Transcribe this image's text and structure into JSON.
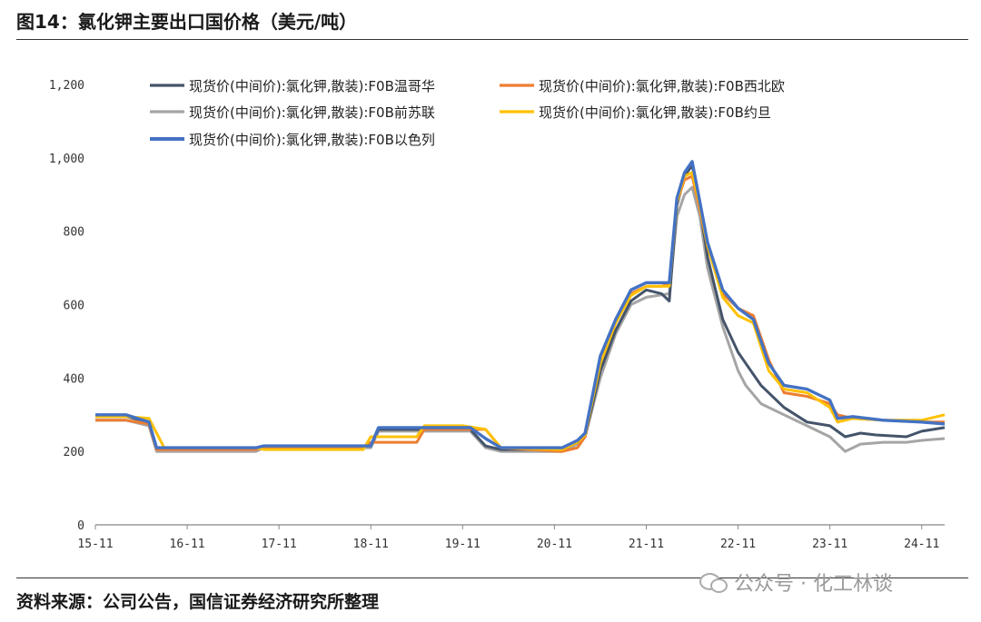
{
  "figure": {
    "title": "图14：氯化钾主要出口国价格（美元/吨）",
    "source": "资料来源：公司公告，国信证券经济研究所整理",
    "watermark": "公众号 · 化工林谈"
  },
  "colors": {
    "vancouver": "#44546a",
    "northwest_europe": "#ed7d31",
    "former_soviet": "#a5a5a5",
    "jordan": "#ffc000",
    "israel": "#4472c4"
  },
  "icons": {
    "watermark": "wechat-icon"
  },
  "chart_data": {
    "type": "line",
    "title": "",
    "xlabel": "",
    "ylabel": "",
    "x_type": "date",
    "xlim": [
      "2015-11",
      "2025-02"
    ],
    "ylim": [
      0,
      1200
    ],
    "y_ticks": [
      0,
      200,
      400,
      600,
      800,
      1000,
      1200
    ],
    "y_tick_labels": [
      "0",
      "200",
      "400",
      "600",
      "800",
      "1,000",
      "1,200"
    ],
    "x_ticks": [
      "2015-11",
      "2016-11",
      "2017-11",
      "2018-11",
      "2019-11",
      "2020-11",
      "2021-11",
      "2022-11",
      "2023-11",
      "2024-11"
    ],
    "x_tick_labels": [
      "15-11",
      "16-11",
      "17-11",
      "18-11",
      "19-11",
      "20-11",
      "21-11",
      "22-11",
      "23-11",
      "24-11"
    ],
    "grid": false,
    "legend": "top",
    "series": [
      {
        "name": "现货价(中间价):氯化钾,散装):F0B温哥华",
        "key": "vancouver",
        "points": [
          [
            "2015-11",
            295
          ],
          [
            "2016-03",
            295
          ],
          [
            "2016-06",
            280
          ],
          [
            "2016-07",
            210
          ],
          [
            "2017-08",
            210
          ],
          [
            "2017-09",
            215
          ],
          [
            "2018-11",
            215
          ],
          [
            "2018-12",
            260
          ],
          [
            "2019-12",
            260
          ],
          [
            "2020-02",
            215
          ],
          [
            "2020-04",
            205
          ],
          [
            "2020-12",
            205
          ],
          [
            "2021-02",
            225
          ],
          [
            "2021-03",
            240
          ],
          [
            "2021-05",
            420
          ],
          [
            "2021-07",
            530
          ],
          [
            "2021-09",
            610
          ],
          [
            "2021-11",
            640
          ],
          [
            "2022-01",
            630
          ],
          [
            "2022-02",
            610
          ],
          [
            "2022-03",
            870
          ],
          [
            "2022-04",
            950
          ],
          [
            "2022-05",
            980
          ],
          [
            "2022-06",
            870
          ],
          [
            "2022-07",
            730
          ],
          [
            "2022-09",
            560
          ],
          [
            "2022-11",
            470
          ],
          [
            "2022-12",
            440
          ],
          [
            "2023-02",
            380
          ],
          [
            "2023-05",
            320
          ],
          [
            "2023-08",
            280
          ],
          [
            "2023-11",
            270
          ],
          [
            "2024-01",
            240
          ],
          [
            "2024-03",
            250
          ],
          [
            "2024-05",
            245
          ],
          [
            "2024-09",
            240
          ],
          [
            "2024-11",
            255
          ],
          [
            "2025-02",
            265
          ]
        ]
      },
      {
        "name": "现货价(中间价):氯化钾,散装):F0B西北欧",
        "key": "northwest_europe",
        "points": [
          [
            "2015-11",
            285
          ],
          [
            "2016-03",
            285
          ],
          [
            "2016-06",
            275
          ],
          [
            "2016-07",
            205
          ],
          [
            "2017-08",
            205
          ],
          [
            "2017-09",
            210
          ],
          [
            "2018-10",
            210
          ],
          [
            "2018-11",
            225
          ],
          [
            "2019-05",
            225
          ],
          [
            "2019-06",
            260
          ],
          [
            "2020-02",
            260
          ],
          [
            "2020-04",
            210
          ],
          [
            "2020-12",
            200
          ],
          [
            "2021-02",
            210
          ],
          [
            "2021-03",
            240
          ],
          [
            "2021-05",
            450
          ],
          [
            "2021-07",
            560
          ],
          [
            "2021-09",
            630
          ],
          [
            "2021-11",
            650
          ],
          [
            "2022-01",
            650
          ],
          [
            "2022-02",
            660
          ],
          [
            "2022-03",
            880
          ],
          [
            "2022-04",
            940
          ],
          [
            "2022-05",
            950
          ],
          [
            "2022-06",
            860
          ],
          [
            "2022-07",
            760
          ],
          [
            "2022-09",
            630
          ],
          [
            "2022-11",
            590
          ],
          [
            "2023-01",
            570
          ],
          [
            "2023-03",
            450
          ],
          [
            "2023-05",
            360
          ],
          [
            "2023-08",
            350
          ],
          [
            "2023-11",
            330
          ],
          [
            "2023-12",
            300
          ],
          [
            "2024-02",
            290
          ],
          [
            "2024-06",
            285
          ],
          [
            "2024-11",
            280
          ],
          [
            "2025-02",
            280
          ]
        ]
      },
      {
        "name": "现货价(中间价):氯化钾,散装):F0B前苏联",
        "key": "former_soviet",
        "points": [
          [
            "2015-11",
            285
          ],
          [
            "2016-03",
            285
          ],
          [
            "2016-06",
            270
          ],
          [
            "2016-07",
            200
          ],
          [
            "2017-08",
            200
          ],
          [
            "2017-09",
            210
          ],
          [
            "2018-11",
            210
          ],
          [
            "2018-12",
            255
          ],
          [
            "2019-12",
            255
          ],
          [
            "2020-02",
            210
          ],
          [
            "2020-04",
            200
          ],
          [
            "2020-12",
            200
          ],
          [
            "2021-02",
            220
          ],
          [
            "2021-03",
            240
          ],
          [
            "2021-05",
            400
          ],
          [
            "2021-07",
            520
          ],
          [
            "2021-09",
            600
          ],
          [
            "2021-11",
            620
          ],
          [
            "2022-02",
            630
          ],
          [
            "2022-03",
            840
          ],
          [
            "2022-04",
            900
          ],
          [
            "2022-05",
            920
          ],
          [
            "2022-06",
            840
          ],
          [
            "2022-07",
            700
          ],
          [
            "2022-09",
            540
          ],
          [
            "2022-11",
            420
          ],
          [
            "2022-12",
            380
          ],
          [
            "2023-02",
            330
          ],
          [
            "2023-05",
            300
          ],
          [
            "2023-08",
            270
          ],
          [
            "2023-11",
            240
          ],
          [
            "2024-01",
            200
          ],
          [
            "2024-03",
            220
          ],
          [
            "2024-06",
            225
          ],
          [
            "2024-09",
            225
          ],
          [
            "2024-11",
            230
          ],
          [
            "2025-02",
            235
          ]
        ]
      },
      {
        "name": "现货价(中间价):氯化钾,散装):F0B约旦",
        "key": "jordan",
        "points": [
          [
            "2015-11",
            295
          ],
          [
            "2016-03",
            295
          ],
          [
            "2016-06",
            290
          ],
          [
            "2016-08",
            210
          ],
          [
            "2017-08",
            210
          ],
          [
            "2017-09",
            205
          ],
          [
            "2018-10",
            205
          ],
          [
            "2018-11",
            240
          ],
          [
            "2019-05",
            240
          ],
          [
            "2019-06",
            270
          ],
          [
            "2019-11",
            270
          ],
          [
            "2020-02",
            260
          ],
          [
            "2020-04",
            210
          ],
          [
            "2020-12",
            205
          ],
          [
            "2021-02",
            225
          ],
          [
            "2021-03",
            245
          ],
          [
            "2021-05",
            440
          ],
          [
            "2021-07",
            550
          ],
          [
            "2021-09",
            625
          ],
          [
            "2021-11",
            650
          ],
          [
            "2022-02",
            650
          ],
          [
            "2022-03",
            880
          ],
          [
            "2022-04",
            950
          ],
          [
            "2022-05",
            960
          ],
          [
            "2022-06",
            870
          ],
          [
            "2022-07",
            760
          ],
          [
            "2022-09",
            620
          ],
          [
            "2022-11",
            570
          ],
          [
            "2023-01",
            550
          ],
          [
            "2023-03",
            420
          ],
          [
            "2023-05",
            370
          ],
          [
            "2023-08",
            360
          ],
          [
            "2023-11",
            320
          ],
          [
            "2023-12",
            280
          ],
          [
            "2024-02",
            290
          ],
          [
            "2024-06",
            285
          ],
          [
            "2024-11",
            285
          ],
          [
            "2025-02",
            300
          ]
        ]
      },
      {
        "name": "现货价(中间价):氯化钾,散装):F0B以色列",
        "key": "israel",
        "points": [
          [
            "2015-11",
            300
          ],
          [
            "2016-03",
            300
          ],
          [
            "2016-06",
            280
          ],
          [
            "2016-07",
            210
          ],
          [
            "2017-08",
            210
          ],
          [
            "2017-09",
            215
          ],
          [
            "2018-11",
            215
          ],
          [
            "2018-12",
            265
          ],
          [
            "2019-12",
            265
          ],
          [
            "2020-02",
            235
          ],
          [
            "2020-04",
            210
          ],
          [
            "2020-12",
            210
          ],
          [
            "2021-02",
            230
          ],
          [
            "2021-03",
            250
          ],
          [
            "2021-05",
            460
          ],
          [
            "2021-07",
            560
          ],
          [
            "2021-09",
            640
          ],
          [
            "2021-11",
            660
          ],
          [
            "2022-02",
            660
          ],
          [
            "2022-03",
            890
          ],
          [
            "2022-04",
            960
          ],
          [
            "2022-05",
            990
          ],
          [
            "2022-06",
            880
          ],
          [
            "2022-07",
            770
          ],
          [
            "2022-09",
            640
          ],
          [
            "2022-11",
            590
          ],
          [
            "2023-01",
            560
          ],
          [
            "2023-03",
            440
          ],
          [
            "2023-05",
            380
          ],
          [
            "2023-08",
            370
          ],
          [
            "2023-11",
            340
          ],
          [
            "2023-12",
            290
          ],
          [
            "2024-02",
            295
          ],
          [
            "2024-06",
            285
          ],
          [
            "2024-11",
            280
          ],
          [
            "2025-02",
            275
          ]
        ]
      }
    ]
  }
}
